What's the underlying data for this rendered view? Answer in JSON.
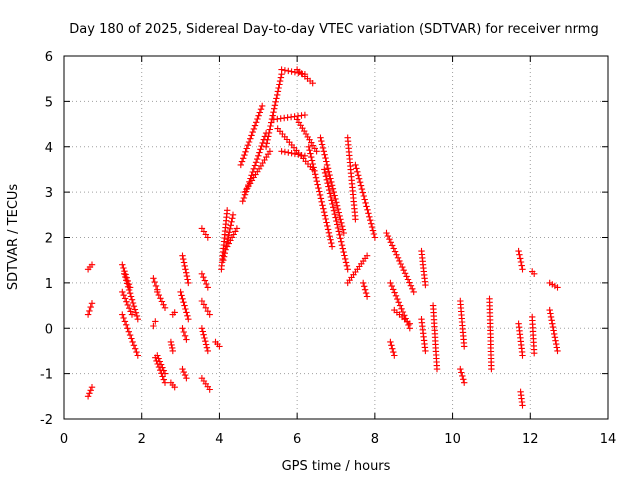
{
  "chart_data": {
    "type": "scatter",
    "title": "Day 180 of 2025, Sidereal Day-to-day VTEC variation (SDTVAR) for receiver nrmg",
    "xlabel": "GPS time / hours",
    "ylabel": "SDTVAR / TECUs",
    "xlim": [
      0,
      14
    ],
    "ylim": [
      -2,
      6
    ],
    "xticks": [
      0,
      2,
      4,
      6,
      8,
      10,
      12,
      14
    ],
    "yticks": [
      -2,
      -1,
      0,
      1,
      2,
      3,
      4,
      5,
      6
    ],
    "xtick_labels": [
      "0",
      "2",
      "4",
      "6",
      "8",
      "10",
      "12",
      "14"
    ],
    "ytick_labels": [
      "-2",
      "-1",
      "0",
      "1",
      "2",
      "3",
      "4",
      "5",
      "6"
    ],
    "grid": true,
    "marker": "+",
    "color": "#ff0000",
    "segments": [
      {
        "x": [
          0.62,
          0.72
        ],
        "y": [
          1.3,
          1.4
        ]
      },
      {
        "x": [
          0.62,
          0.72
        ],
        "y": [
          0.3,
          0.55
        ]
      },
      {
        "x": [
          0.62,
          0.72
        ],
        "y": [
          -1.5,
          -1.3
        ]
      },
      {
        "x": [
          1.5,
          1.7
        ],
        "y": [
          1.4,
          0.9
        ]
      },
      {
        "x": [
          1.5,
          1.75
        ],
        "y": [
          0.8,
          0.3
        ]
      },
      {
        "x": [
          1.5,
          1.9
        ],
        "y": [
          0.3,
          -0.6
        ]
      },
      {
        "x": [
          1.55,
          1.9
        ],
        "y": [
          1.2,
          0.2
        ]
      },
      {
        "x": [
          2.3,
          2.4
        ],
        "y": [
          1.1,
          0.85
        ]
      },
      {
        "x": [
          2.3,
          2.35
        ],
        "y": [
          0.05,
          0.15
        ]
      },
      {
        "x": [
          2.35,
          2.6
        ],
        "y": [
          -0.65,
          -1.2
        ]
      },
      {
        "x": [
          2.4,
          2.6
        ],
        "y": [
          -0.6,
          -1.0
        ]
      },
      {
        "x": [
          2.4,
          2.6
        ],
        "y": [
          0.8,
          0.45
        ]
      },
      {
        "x": [
          2.8,
          2.85
        ],
        "y": [
          0.3,
          0.35
        ]
      },
      {
        "x": [
          2.75,
          2.8
        ],
        "y": [
          -0.3,
          -0.5
        ]
      },
      {
        "x": [
          2.75,
          2.85
        ],
        "y": [
          -1.2,
          -1.3
        ]
      },
      {
        "x": [
          3.05,
          3.2
        ],
        "y": [
          1.6,
          1.0
        ]
      },
      {
        "x": [
          3.0,
          3.2
        ],
        "y": [
          0.8,
          0.2
        ]
      },
      {
        "x": [
          3.05,
          3.15
        ],
        "y": [
          0.0,
          -0.25
        ]
      },
      {
        "x": [
          3.05,
          3.15
        ],
        "y": [
          -0.9,
          -1.1
        ]
      },
      {
        "x": [
          3.55,
          3.7
        ],
        "y": [
          2.2,
          2.0
        ]
      },
      {
        "x": [
          3.55,
          3.7
        ],
        "y": [
          1.2,
          0.9
        ]
      },
      {
        "x": [
          3.55,
          3.75
        ],
        "y": [
          0.6,
          0.3
        ]
      },
      {
        "x": [
          3.55,
          3.7
        ],
        "y": [
          0.0,
          -0.5
        ]
      },
      {
        "x": [
          3.55,
          3.75
        ],
        "y": [
          -1.1,
          -1.35
        ]
      },
      {
        "x": [
          3.9,
          4.0
        ],
        "y": [
          -0.3,
          -0.4
        ]
      },
      {
        "x": [
          4.05,
          4.2
        ],
        "y": [
          1.3,
          2.6
        ]
      },
      {
        "x": [
          4.1,
          4.35
        ],
        "y": [
          1.5,
          2.5
        ]
      },
      {
        "x": [
          4.2,
          4.45
        ],
        "y": [
          1.8,
          2.2
        ]
      },
      {
        "x": [
          4.55,
          5.1
        ],
        "y": [
          3.6,
          4.9
        ]
      },
      {
        "x": [
          4.6,
          5.2
        ],
        "y": [
          2.8,
          4.3
        ]
      },
      {
        "x": [
          4.65,
          5.3
        ],
        "y": [
          3.0,
          3.9
        ]
      },
      {
        "x": [
          5.2,
          5.6
        ],
        "y": [
          4.0,
          5.6
        ]
      },
      {
        "x": [
          5.6,
          6.2
        ],
        "y": [
          5.7,
          5.6
        ]
      },
      {
        "x": [
          6.0,
          6.4
        ],
        "y": [
          5.7,
          5.4
        ]
      },
      {
        "x": [
          5.4,
          6.2
        ],
        "y": [
          4.6,
          4.7
        ]
      },
      {
        "x": [
          5.5,
          6.4
        ],
        "y": [
          4.4,
          3.5
        ]
      },
      {
        "x": [
          5.6,
          6.2
        ],
        "y": [
          3.9,
          3.8
        ]
      },
      {
        "x": [
          6.0,
          6.5
        ],
        "y": [
          4.6,
          3.9
        ]
      },
      {
        "x": [
          6.3,
          6.9
        ],
        "y": [
          4.0,
          1.8
        ]
      },
      {
        "x": [
          6.6,
          7.2
        ],
        "y": [
          4.2,
          2.1
        ]
      },
      {
        "x": [
          6.7,
          7.3
        ],
        "y": [
          3.5,
          1.3
        ]
      },
      {
        "x": [
          7.3,
          7.5
        ],
        "y": [
          4.2,
          2.4
        ]
      },
      {
        "x": [
          7.3,
          7.8
        ],
        "y": [
          1.0,
          1.6
        ]
      },
      {
        "x": [
          7.5,
          8.0
        ],
        "y": [
          3.6,
          2.0
        ]
      },
      {
        "x": [
          7.7,
          7.8
        ],
        "y": [
          1.0,
          0.7
        ]
      },
      {
        "x": [
          8.3,
          9.0
        ],
        "y": [
          2.1,
          0.8
        ]
      },
      {
        "x": [
          8.4,
          8.9
        ],
        "y": [
          1.0,
          0.0
        ]
      },
      {
        "x": [
          8.5,
          8.9
        ],
        "y": [
          0.4,
          0.1
        ]
      },
      {
        "x": [
          8.4,
          8.5
        ],
        "y": [
          -0.3,
          -0.6
        ]
      },
      {
        "x": [
          9.2,
          9.3
        ],
        "y": [
          1.7,
          0.95
        ]
      },
      {
        "x": [
          9.2,
          9.3
        ],
        "y": [
          0.2,
          -0.5
        ]
      },
      {
        "x": [
          9.5,
          9.6
        ],
        "y": [
          0.5,
          -0.9
        ]
      },
      {
        "x": [
          10.2,
          10.3
        ],
        "y": [
          0.6,
          -0.4
        ]
      },
      {
        "x": [
          10.2,
          10.3
        ],
        "y": [
          -0.9,
          -1.2
        ]
      },
      {
        "x": [
          10.95,
          11.0
        ],
        "y": [
          0.65,
          -0.9
        ]
      },
      {
        "x": [
          11.7,
          11.8
        ],
        "y": [
          1.7,
          1.3
        ]
      },
      {
        "x": [
          11.7,
          11.8
        ],
        "y": [
          0.1,
          -0.6
        ]
      },
      {
        "x": [
          11.75,
          11.8
        ],
        "y": [
          -1.4,
          -1.7
        ]
      },
      {
        "x": [
          12.05,
          12.1
        ],
        "y": [
          1.25,
          1.2
        ]
      },
      {
        "x": [
          12.05,
          12.1
        ],
        "y": [
          0.25,
          -0.55
        ]
      },
      {
        "x": [
          12.5,
          12.7
        ],
        "y": [
          1.0,
          0.9
        ]
      },
      {
        "x": [
          12.5,
          12.7
        ],
        "y": [
          0.4,
          -0.5
        ]
      }
    ]
  }
}
